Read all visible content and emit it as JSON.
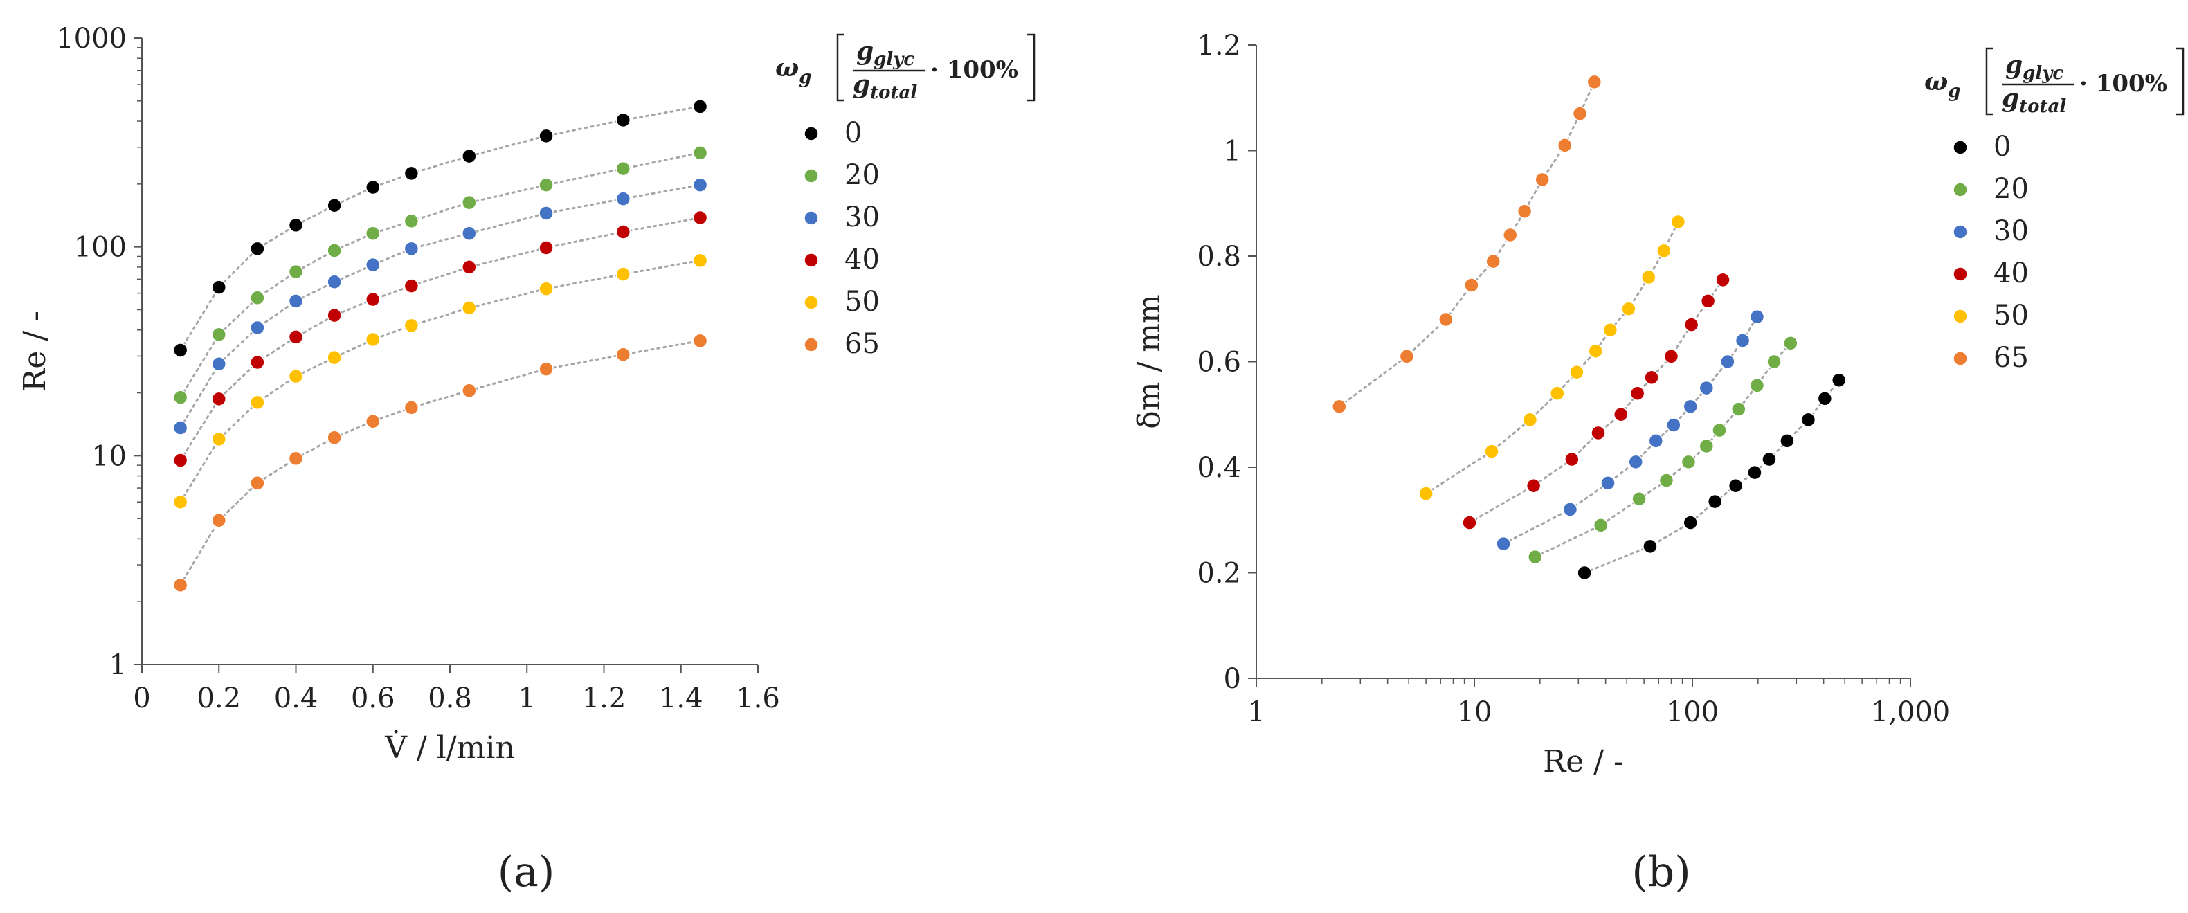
{
  "chart_data": [
    {
      "id": "a",
      "type": "scatter",
      "panel_label": "(a)",
      "x_label": "V̇ / l/min",
      "y_label": "Re / -",
      "x_scale": "linear",
      "y_scale": "log",
      "xlim": [
        0,
        1.6
      ],
      "ylim": [
        1,
        1000
      ],
      "x_ticks": [
        "0",
        "0.2",
        "0.4",
        "0.6",
        "0.8",
        "1",
        "1.2",
        "1.4",
        "1.6"
      ],
      "y_ticks": [
        "1",
        "10",
        "100",
        "1000"
      ],
      "trendlines": "dotted",
      "legend_placement": "right",
      "legend": {
        "symbol": "ω",
        "symbol_sub": "g",
        "numerator": "g",
        "numerator_sub": "glyc",
        "denominator": "g",
        "denominator_sub": "total",
        "factor": "· 100%"
      },
      "series": [
        {
          "name": "0",
          "color": "#000000",
          "x": [
            0.1,
            0.2,
            0.3,
            0.4,
            0.5,
            0.6,
            0.7,
            0.85,
            1.05,
            1.25,
            1.45
          ],
          "y": [
            32,
            64,
            98,
            127,
            158,
            193,
            225,
            272,
            340,
            405,
            470
          ]
        },
        {
          "name": "20",
          "color": "#70ad47",
          "x": [
            0.1,
            0.2,
            0.3,
            0.4,
            0.5,
            0.6,
            0.7,
            0.85,
            1.05,
            1.25,
            1.45
          ],
          "y": [
            19,
            38,
            57,
            76,
            96,
            116,
            133,
            163,
            198,
            237,
            282
          ]
        },
        {
          "name": "30",
          "color": "#4472c4",
          "x": [
            0.1,
            0.2,
            0.3,
            0.4,
            0.5,
            0.6,
            0.7,
            0.85,
            1.05,
            1.25,
            1.45
          ],
          "y": [
            13.6,
            27.5,
            41,
            55,
            68,
            82,
            98,
            116,
            145,
            170,
            198
          ]
        },
        {
          "name": "40",
          "color": "#c00000",
          "x": [
            0.1,
            0.2,
            0.3,
            0.4,
            0.5,
            0.6,
            0.7,
            0.85,
            1.05,
            1.25,
            1.45
          ],
          "y": [
            9.5,
            18.7,
            28,
            37,
            47,
            56,
            65,
            80,
            99,
            118,
            138
          ]
        },
        {
          "name": "50",
          "color": "#ffc000",
          "x": [
            0.1,
            0.2,
            0.3,
            0.4,
            0.5,
            0.6,
            0.7,
            0.85,
            1.05,
            1.25,
            1.45
          ],
          "y": [
            6,
            12,
            18,
            24,
            29.5,
            36,
            42,
            51,
            63,
            74,
            86
          ]
        },
        {
          "name": "65",
          "color": "#ed7d31",
          "x": [
            0.1,
            0.2,
            0.3,
            0.4,
            0.5,
            0.6,
            0.7,
            0.85,
            1.05,
            1.25,
            1.45
          ],
          "y": [
            2.4,
            4.9,
            7.4,
            9.7,
            12.2,
            14.6,
            17,
            20.5,
            26,
            30.5,
            35.5
          ]
        }
      ]
    },
    {
      "id": "b",
      "type": "scatter",
      "panel_label": "(b)",
      "x_label": "Re / -",
      "y_label": "δm / mm",
      "x_scale": "log",
      "y_scale": "linear",
      "xlim": [
        1,
        1000
      ],
      "ylim": [
        0,
        1.2
      ],
      "x_ticks": [
        "1",
        "10",
        "100",
        "1,000"
      ],
      "y_ticks": [
        "0",
        "0.2",
        "0.4",
        "0.6",
        "0.8",
        "1",
        "1.2"
      ],
      "trendlines": "dotted",
      "legend_placement": "right",
      "legend": {
        "symbol": "ω",
        "symbol_sub": "g",
        "numerator": "g",
        "numerator_sub": "glyc",
        "denominator": "g",
        "denominator_sub": "total",
        "factor": "· 100%"
      },
      "series": [
        {
          "name": "0",
          "color": "#000000",
          "x": [
            32,
            64,
            98,
            127,
            158,
            193,
            225,
            272,
            340,
            405,
            470
          ],
          "y": [
            0.2,
            0.25,
            0.295,
            0.335,
            0.365,
            0.39,
            0.415,
            0.45,
            0.49,
            0.53,
            0.565
          ]
        },
        {
          "name": "20",
          "color": "#70ad47",
          "x": [
            19,
            38,
            57,
            76,
            96,
            116,
            133,
            163,
            198,
            237,
            282
          ],
          "y": [
            0.23,
            0.29,
            0.34,
            0.375,
            0.41,
            0.44,
            0.47,
            0.51,
            0.555,
            0.6,
            0.635
          ]
        },
        {
          "name": "30",
          "color": "#4472c4",
          "x": [
            13.6,
            27.5,
            41,
            55,
            68,
            82,
            98,
            116,
            145,
            170,
            198
          ],
          "y": [
            0.255,
            0.32,
            0.37,
            0.41,
            0.45,
            0.48,
            0.515,
            0.55,
            0.6,
            0.64,
            0.685
          ]
        },
        {
          "name": "40",
          "color": "#c00000",
          "x": [
            9.5,
            18.7,
            28,
            37,
            47,
            56,
            65,
            80,
            99,
            118,
            138
          ],
          "y": [
            0.295,
            0.365,
            0.415,
            0.465,
            0.5,
            0.54,
            0.57,
            0.61,
            0.67,
            0.715,
            0.755
          ]
        },
        {
          "name": "50",
          "color": "#ffc000",
          "x": [
            6,
            12,
            18,
            24,
            29.5,
            36,
            42,
            51,
            63,
            74,
            86
          ],
          "y": [
            0.35,
            0.43,
            0.49,
            0.54,
            0.58,
            0.62,
            0.66,
            0.7,
            0.76,
            0.81,
            0.865
          ]
        },
        {
          "name": "65",
          "color": "#ed7d31",
          "x": [
            2.4,
            4.9,
            7.4,
            9.7,
            12.2,
            14.6,
            17,
            20.5,
            26,
            30.5,
            35.5
          ],
          "y": [
            0.515,
            0.61,
            0.68,
            0.745,
            0.79,
            0.84,
            0.885,
            0.945,
            1.01,
            1.07,
            1.13
          ]
        }
      ]
    }
  ]
}
